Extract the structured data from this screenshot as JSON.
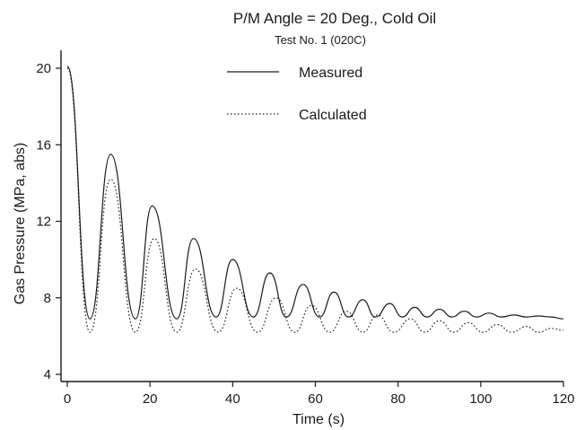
{
  "chart_data": {
    "type": "line",
    "title": "P/M Angle = 20 Deg., Cold Oil",
    "subtitle": "Test No. 1 (020C)",
    "xlabel": "Time (s)",
    "ylabel": "Gas Pressure (MPa, abs)",
    "xlim": [
      0,
      120
    ],
    "ylim": [
      4,
      20
    ],
    "xticks": [
      0,
      20,
      40,
      60,
      80,
      100,
      120
    ],
    "yticks": [
      4,
      8,
      12,
      16,
      20
    ],
    "grid": false,
    "legend_position": "top-center",
    "series": [
      {
        "name": "Measured",
        "style": "solid",
        "x": [
          0,
          5.5,
          10.5,
          16.5,
          20.5,
          26.5,
          30.5,
          36,
          40,
          45,
          49,
          53,
          57,
          61,
          64.5,
          68,
          71.5,
          74.5,
          78,
          81,
          84,
          87,
          90,
          93,
          96,
          99,
          102,
          105,
          108,
          111,
          114,
          117,
          120
        ],
        "values": [
          20.1,
          6.9,
          15.5,
          6.9,
          12.8,
          6.9,
          11.1,
          7.0,
          10.0,
          7.0,
          9.3,
          7.0,
          8.7,
          7.0,
          8.3,
          7.0,
          7.9,
          7.0,
          7.7,
          7.0,
          7.5,
          7.0,
          7.4,
          7.0,
          7.3,
          7.0,
          7.2,
          7.0,
          7.1,
          7.0,
          7.05,
          7.0,
          6.9
        ]
      },
      {
        "name": "Calculated",
        "style": "dotted",
        "x": [
          0,
          5.5,
          10.5,
          16.5,
          21,
          26.5,
          31,
          36.5,
          41,
          46,
          50.5,
          55,
          59,
          63.5,
          67.5,
          71.5,
          75,
          79,
          83,
          86.5,
          90,
          93.5,
          97,
          100.5,
          104,
          107.5,
          111,
          114,
          117,
          120
        ],
        "values": [
          20.0,
          6.2,
          14.2,
          6.2,
          11.1,
          6.2,
          9.5,
          6.2,
          8.5,
          6.2,
          8.0,
          6.2,
          7.6,
          6.2,
          7.3,
          6.2,
          7.1,
          6.2,
          6.9,
          6.2,
          6.8,
          6.2,
          6.7,
          6.2,
          6.6,
          6.2,
          6.5,
          6.2,
          6.4,
          6.3
        ]
      }
    ]
  }
}
